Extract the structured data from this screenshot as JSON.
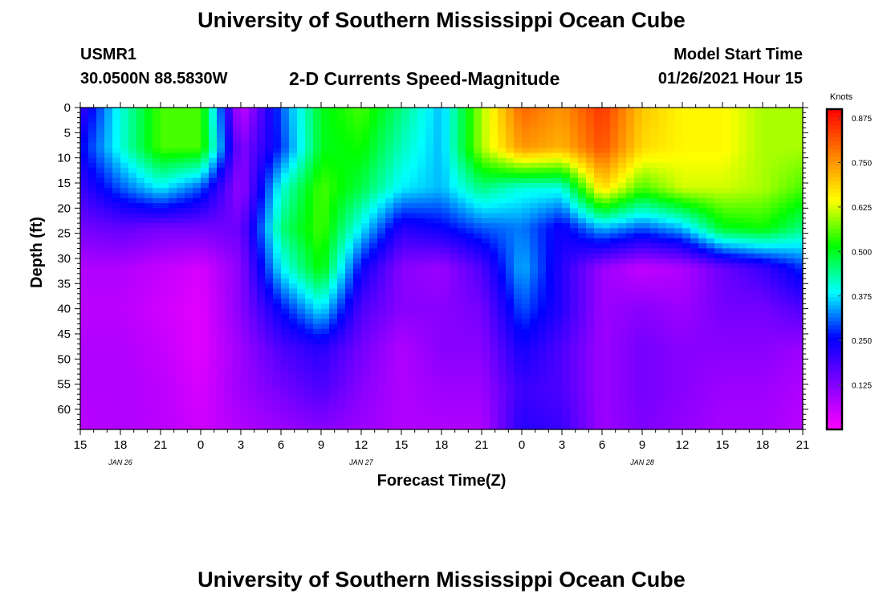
{
  "title": "University of Southern Mississippi Ocean Cube",
  "footer_title": "University of Southern Mississippi Ocean Cube",
  "station": {
    "id": "USMR1",
    "coords": "30.0500N 88.5830W"
  },
  "model": {
    "label": "Model Start Time",
    "value": "01/26/2021 Hour 15"
  },
  "chart_data": {
    "type": "heatmap",
    "title": "2-D Currents Speed-Magnitude",
    "xlabel": "Forecast Time(Z)",
    "ylabel": "Depth (ft)",
    "x_tick_labels": [
      "15",
      "18",
      "21",
      "0",
      "3",
      "6",
      "9",
      "12",
      "15",
      "18",
      "21",
      "0",
      "3",
      "6",
      "9",
      "12",
      "15",
      "18",
      "21"
    ],
    "date_labels": [
      {
        "label": "JAN 26",
        "at_tick": 1
      },
      {
        "label": "JAN 27",
        "at_tick": 7
      },
      {
        "label": "JAN 28",
        "at_tick": 14
      }
    ],
    "x_range_hours": [
      0,
      54
    ],
    "y_tick_labels": [
      "0",
      "5",
      "10",
      "15",
      "20",
      "25",
      "30",
      "35",
      "40",
      "45",
      "50",
      "55",
      "60"
    ],
    "ylim": [
      0,
      64
    ],
    "y_reversed": true,
    "colorbar": {
      "unit": "Knots",
      "range": [
        0,
        0.9
      ],
      "tick_labels": [
        "0.875",
        "0.750",
        "0.625",
        "0.500",
        "0.375",
        "0.250",
        "0.125"
      ],
      "tick_values": [
        0.875,
        0.75,
        0.625,
        0.5,
        0.375,
        0.25,
        0.125
      ]
    },
    "colors": {
      "scale": [
        "#ff00ff",
        "#8000ff",
        "#0000ff",
        "#00ffff",
        "#00ff00",
        "#ffff00",
        "#ff8000",
        "#ff0000"
      ]
    },
    "depths": [
      0,
      8,
      16,
      24,
      32,
      40,
      48,
      56,
      64
    ],
    "times_hours": [
      0,
      3,
      6,
      9,
      12,
      15,
      18,
      21,
      24,
      27,
      30,
      33,
      36,
      39,
      42,
      45,
      48,
      51,
      54
    ],
    "values": [
      [
        0.2,
        0.4,
        0.55,
        0.55,
        0.05,
        0.3,
        0.5,
        0.55,
        0.45,
        0.35,
        0.6,
        0.8,
        0.75,
        0.85,
        0.7,
        0.65,
        0.65,
        0.6,
        0.6
      ],
      [
        0.25,
        0.4,
        0.55,
        0.55,
        0.12,
        0.28,
        0.5,
        0.52,
        0.42,
        0.35,
        0.6,
        0.75,
        0.72,
        0.82,
        0.68,
        0.65,
        0.65,
        0.6,
        0.6
      ],
      [
        0.2,
        0.3,
        0.38,
        0.3,
        0.1,
        0.4,
        0.55,
        0.48,
        0.38,
        0.35,
        0.45,
        0.4,
        0.4,
        0.68,
        0.55,
        0.62,
        0.62,
        0.6,
        0.55
      ],
      [
        0.14,
        0.16,
        0.14,
        0.14,
        0.15,
        0.45,
        0.55,
        0.38,
        0.22,
        0.25,
        0.3,
        0.32,
        0.24,
        0.35,
        0.3,
        0.35,
        0.5,
        0.52,
        0.45
      ],
      [
        0.08,
        0.08,
        0.06,
        0.04,
        0.12,
        0.38,
        0.52,
        0.25,
        0.12,
        0.1,
        0.18,
        0.35,
        0.22,
        0.1,
        0.06,
        0.08,
        0.15,
        0.2,
        0.28
      ],
      [
        0.07,
        0.07,
        0.05,
        0.03,
        0.12,
        0.26,
        0.38,
        0.18,
        0.12,
        0.12,
        0.14,
        0.3,
        0.22,
        0.1,
        0.12,
        0.1,
        0.14,
        0.14,
        0.18
      ],
      [
        0.08,
        0.08,
        0.06,
        0.03,
        0.1,
        0.18,
        0.22,
        0.14,
        0.08,
        0.12,
        0.12,
        0.24,
        0.18,
        0.1,
        0.14,
        0.12,
        0.12,
        0.12,
        0.1
      ],
      [
        0.08,
        0.08,
        0.07,
        0.04,
        0.1,
        0.14,
        0.18,
        0.12,
        0.08,
        0.1,
        0.1,
        0.2,
        0.18,
        0.1,
        0.14,
        0.12,
        0.1,
        0.1,
        0.08
      ],
      [
        0.07,
        0.08,
        0.07,
        0.05,
        0.08,
        0.1,
        0.12,
        0.1,
        0.08,
        0.08,
        0.08,
        0.22,
        0.2,
        0.1,
        0.13,
        0.11,
        0.09,
        0.09,
        0.07
      ]
    ]
  }
}
